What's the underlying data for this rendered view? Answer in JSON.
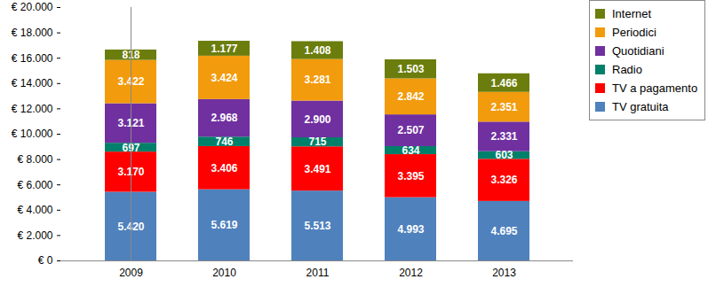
{
  "chart_data": {
    "type": "bar",
    "stacked": true,
    "data_labels": true,
    "grid": false,
    "legend": "right",
    "categories": [
      "2009",
      "2010",
      "2011",
      "2012",
      "2013"
    ],
    "ylim": [
      0,
      20000
    ],
    "yticks": [
      {
        "value": 0,
        "label": "€ 0"
      },
      {
        "value": 2000,
        "label": "€ 2.000"
      },
      {
        "value": 4000,
        "label": "€ 4.000"
      },
      {
        "value": 6000,
        "label": "€ 6.000"
      },
      {
        "value": 8000,
        "label": "€ 8.000"
      },
      {
        "value": 10000,
        "label": "€ 10.000"
      },
      {
        "value": 12000,
        "label": "€ 12.000"
      },
      {
        "value": 14000,
        "label": "€ 14.000"
      },
      {
        "value": 16000,
        "label": "€ 16.000"
      },
      {
        "value": 18000,
        "label": "€ 18.000"
      },
      {
        "value": 20000,
        "label": "€ 20.000"
      }
    ],
    "series": [
      {
        "name": "TV gratuita",
        "color": "#4f81bd",
        "values": [
          5420,
          5619,
          5513,
          4993,
          4695
        ],
        "value_labels": [
          "5.420",
          "5.619",
          "5.513",
          "4.993",
          "4.695"
        ]
      },
      {
        "name": "TV a pagamento",
        "color": "#ff0000",
        "values": [
          3170,
          3406,
          3491,
          3395,
          3326
        ],
        "value_labels": [
          "3.170",
          "3.406",
          "3.491",
          "3.395",
          "3.326"
        ]
      },
      {
        "name": "Radio",
        "color": "#00806a",
        "values": [
          697,
          746,
          715,
          634,
          603
        ],
        "value_labels": [
          "697",
          "746",
          "715",
          "634",
          "603"
        ]
      },
      {
        "name": "Quotidiani",
        "color": "#7030a0",
        "values": [
          3121,
          2968,
          2900,
          2507,
          2331
        ],
        "value_labels": [
          "3.121",
          "2.968",
          "2.900",
          "2.507",
          "2.331"
        ]
      },
      {
        "name": "Periodici",
        "color": "#f29b0c",
        "values": [
          3422,
          3424,
          3281,
          2842,
          2351
        ],
        "value_labels": [
          "3.422",
          "3.424",
          "3.281",
          "2.842",
          "2.351"
        ]
      },
      {
        "name": "Internet",
        "color": "#6b7d0c",
        "values": [
          818,
          1177,
          1408,
          1503,
          1466
        ],
        "value_labels": [
          "818",
          "1.177",
          "1.408",
          "1.503",
          "1.466"
        ]
      }
    ]
  }
}
